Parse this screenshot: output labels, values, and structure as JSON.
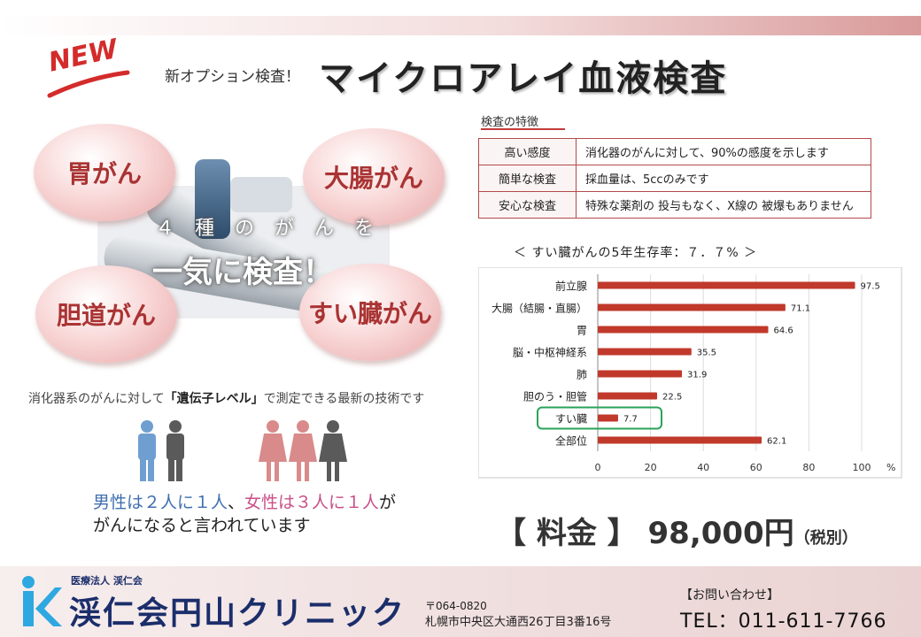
{
  "header": {
    "badge": "NEW",
    "subtitle": "新オプション検査！",
    "title": "マイクロアレイ血液検査"
  },
  "hero": {
    "bubbles": [
      "胃がん",
      "大腸がん",
      "胆道がん",
      "すい臓がん"
    ],
    "line1": "４ 種 の が ん を",
    "line2": "一気に検査！"
  },
  "tech_note": {
    "prefix": "消化器系のがんに対して",
    "emphasis": "「遺伝子レベル」",
    "suffix": "で測定できる最新の技術です"
  },
  "stats": {
    "male": "男性は２人に１人",
    "sep": "、",
    "female": "女性は３人に１人",
    "ga": "が",
    "line2": "がんになると言われています"
  },
  "features": {
    "caption": "検査の特徴",
    "rows": [
      {
        "key": "高い感度",
        "value": "消化器のがんに対して、90%の感度を示します"
      },
      {
        "key": "簡単な検査",
        "value": "採血量は、5ccのみです"
      },
      {
        "key": "安心な検査",
        "value": "特殊な薬剤の 投与もなく、X線の 被爆もありません"
      }
    ]
  },
  "chart_title": "＜ すい臓がんの5年生存率：７．７% ＞",
  "chart_data": {
    "type": "bar",
    "orientation": "horizontal",
    "title": "＜ すい臓がんの5年生存率：７．７% ＞",
    "categories": [
      "前立腺",
      "大腸（結腸・直腸）",
      "胃",
      "脳・中枢神経系",
      "肺",
      "胆のう・胆管",
      "すい臓",
      "全部位"
    ],
    "values": [
      97.5,
      71.1,
      64.6,
      35.5,
      31.9,
      22.5,
      7.7,
      62.1
    ],
    "x_ticks": [
      "0",
      "20",
      "40",
      "60",
      "80",
      "100"
    ],
    "xlim": [
      0,
      100
    ],
    "unit": "%",
    "highlight": "すい臓",
    "bar_color": "#c0392b",
    "highlight_color": "#2aa35a"
  },
  "price": {
    "label": "【 料金 】 98,000円",
    "tax": "（税別）"
  },
  "footer": {
    "corp": "医療法人 渓仁会",
    "clinic": "渓仁会円山クリニック",
    "zip": "〒064-0820",
    "address": "札幌市中央区大通西26丁目3番16号",
    "contact_label": "【お問い合わせ】",
    "tel": "TEL：011-611-7766"
  },
  "colors": {
    "accent": "#c0392b",
    "logo": "#1b2e6b",
    "logo_dot": "#2ea8e0",
    "male": "#3f6fb0",
    "female": "#c94f88"
  }
}
